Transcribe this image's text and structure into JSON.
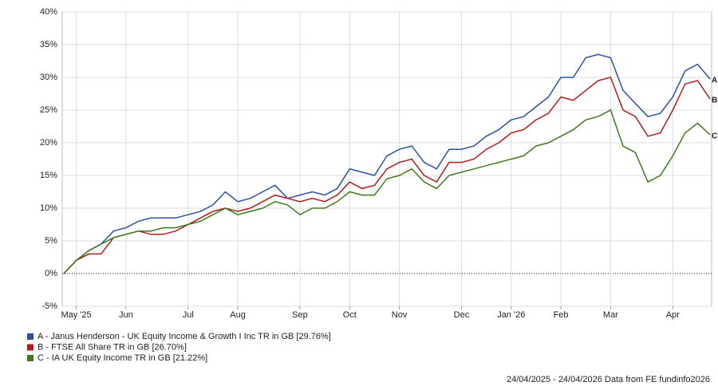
{
  "chart_data": {
    "type": "line",
    "categories": [
      null,
      "May '25",
      null,
      null,
      null,
      "Jun",
      null,
      null,
      null,
      null,
      "Jul",
      null,
      null,
      null,
      "Aug",
      null,
      null,
      null,
      null,
      "Sep",
      null,
      null,
      null,
      "Oct",
      null,
      null,
      null,
      "Nov",
      null,
      null,
      null,
      null,
      "Dec",
      null,
      null,
      null,
      "Jan '26",
      null,
      null,
      null,
      "Feb",
      null,
      null,
      null,
      "Mar",
      null,
      null,
      null,
      null,
      "Apr",
      null,
      null,
      null
    ],
    "series": [
      {
        "name": "A - Janus Henderson - UK Equity Income & Growth I Inc TR in GB [29.76%]",
        "label": "A",
        "color": "#2e4fa3",
        "values": [
          0,
          2,
          3.5,
          4.5,
          6.5,
          7,
          8,
          8.5,
          8.5,
          8.5,
          9,
          9.5,
          10.5,
          12.5,
          11,
          11.5,
          12.5,
          13.5,
          11.5,
          12,
          12.5,
          12,
          13,
          16,
          15.5,
          15,
          18,
          19,
          19.5,
          17,
          16,
          19,
          19,
          19.5,
          21,
          22,
          23.5,
          24,
          25.5,
          27,
          30,
          30,
          33,
          33.5,
          33,
          28,
          26,
          24,
          24.5,
          27,
          31,
          32,
          29.76
        ]
      },
      {
        "name": "B - FTSE All Share TR in GB [26.70%]",
        "label": "B",
        "color": "#b01c1c",
        "values": [
          0,
          2,
          3,
          3,
          5.5,
          6,
          6.5,
          6,
          6,
          6.5,
          7.5,
          8.5,
          9.5,
          10,
          9.5,
          10,
          11,
          12,
          11.5,
          11,
          11.5,
          11,
          12,
          14,
          13,
          13.5,
          16,
          17,
          17.5,
          15,
          14,
          17,
          17,
          17.5,
          19,
          20,
          21.5,
          22,
          23.5,
          24.5,
          27,
          26.5,
          28,
          29.5,
          30,
          25,
          24,
          21,
          21.5,
          25,
          29,
          29.5,
          26.7
        ]
      },
      {
        "name": "C - IA UK Equity Income TR in GB [21.22%]",
        "label": "C",
        "color": "#3f7a1e",
        "values": [
          0,
          2,
          3.5,
          4.5,
          5.5,
          6,
          6.5,
          6.5,
          7,
          7,
          7.5,
          8,
          9,
          10,
          9,
          9.5,
          10,
          11,
          10.5,
          9,
          10,
          10,
          11,
          12.5,
          12,
          12,
          14.5,
          15,
          16,
          14,
          13,
          15,
          15.5,
          16,
          16.5,
          17,
          17.5,
          18,
          19.5,
          20,
          21,
          22,
          23.5,
          24,
          25,
          19.5,
          18.5,
          14,
          15,
          18,
          21.5,
          23,
          21.22
        ]
      }
    ],
    "ylim": [
      -5,
      40
    ],
    "yticks": [
      {
        "value": -5,
        "label": "-5%"
      },
      {
        "value": 0,
        "label": "0%"
      },
      {
        "value": 5,
        "label": "5%"
      },
      {
        "value": 10,
        "label": "10%"
      },
      {
        "value": 15,
        "label": "15%"
      },
      {
        "value": 20,
        "label": "20%"
      },
      {
        "value": 25,
        "label": "25%"
      },
      {
        "value": 30,
        "label": "30%"
      },
      {
        "value": 35,
        "label": "35%"
      },
      {
        "value": 40,
        "label": "40%"
      }
    ],
    "grid": true,
    "footer": "24/04/2025 - 24/04/2026 Data from FE fundinfo2026"
  }
}
